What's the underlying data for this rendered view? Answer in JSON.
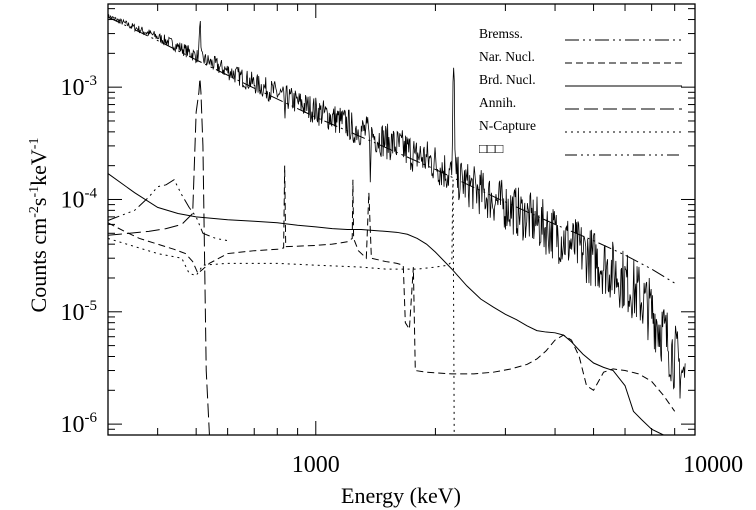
{
  "chart_data": {
    "type": "line",
    "xlabel": "Energy (keV)",
    "ylabel": "Counts cm-2s-1keV-1",
    "ylabel_parts": [
      "Counts cm",
      "-2",
      "s",
      "-1",
      "keV",
      "-1"
    ],
    "x_scale": "log",
    "y_scale": "log",
    "xlim": [
      300,
      9000
    ],
    "ylim": [
      8e-07,
      0.0055
    ],
    "x_ticks": [
      {
        "value": 1000,
        "label": "1000"
      },
      {
        "value": 10000,
        "label": "10000"
      }
    ],
    "y_ticks": [
      {
        "value": 0.001,
        "base": "10",
        "exp": "-3"
      },
      {
        "value": 0.0001,
        "base": "10",
        "exp": "-4"
      },
      {
        "value": 1e-05,
        "base": "10",
        "exp": "-5"
      },
      {
        "value": 1e-06,
        "base": "10",
        "exp": "-6"
      }
    ],
    "legend_position": "top-right",
    "grid": false,
    "series": [
      {
        "name": "Bremss.",
        "dash": "14,4,2,4,2,4",
        "points": [
          [
            300,
            0.0042
          ],
          [
            400,
            0.0026
          ],
          [
            500,
            0.00175
          ],
          [
            700,
            0.00098
          ],
          [
            1000,
            0.00054
          ],
          [
            1500,
            0.00029
          ],
          [
            2000,
            0.000185
          ],
          [
            2500,
            0.000128
          ],
          [
            3000,
            9.5e-05
          ],
          [
            4000,
            6e-05
          ],
          [
            5000,
            4.3e-05
          ],
          [
            6000,
            3.2e-05
          ],
          [
            7000,
            2.4e-05
          ],
          [
            8000,
            1.8e-05
          ]
        ]
      },
      {
        "name": "Nar. Nucl.",
        "dash": "7,4",
        "points": [
          [
            300,
            6.2e-05
          ],
          [
            330,
            5.2e-05
          ],
          [
            360,
            4.5e-05
          ],
          [
            400,
            4e-05
          ],
          [
            440,
            3.6e-05
          ],
          [
            470,
            3.3e-05
          ],
          [
            490,
            2.8e-05
          ],
          [
            505,
            2.2e-05
          ],
          [
            520,
            2.4e-05
          ],
          [
            540,
            2.7e-05
          ],
          [
            600,
            3.3e-05
          ],
          [
            700,
            3.5e-05
          ],
          [
            800,
            3.6e-05
          ],
          [
            830,
            3.7e-05
          ],
          [
            835,
            0.0002
          ],
          [
            840,
            3.8e-05
          ],
          [
            1000,
            3.9e-05
          ],
          [
            1100,
            4e-05
          ],
          [
            1200,
            4.2e-05
          ],
          [
            1235,
            4.5e-05
          ],
          [
            1240,
            0.00015
          ],
          [
            1245,
            4.5e-05
          ],
          [
            1280,
            3.5e-05
          ],
          [
            1340,
            3e-05
          ],
          [
            1360,
            0.000115
          ],
          [
            1380,
            3e-05
          ],
          [
            1500,
            2.8e-05
          ],
          [
            1600,
            2.7e-05
          ],
          [
            1660,
            2.6e-05
          ],
          [
            1680,
            8e-06
          ],
          [
            1720,
            7e-06
          ],
          [
            1760,
            2.5e-05
          ],
          [
            1780,
            3e-06
          ],
          [
            1900,
            2.9e-06
          ],
          [
            2200,
            2.8e-06
          ],
          [
            2500,
            2.8e-06
          ],
          [
            2800,
            2.9e-06
          ],
          [
            3100,
            3.1e-06
          ],
          [
            3400,
            3.4e-06
          ],
          [
            3600,
            3.8e-06
          ],
          [
            3800,
            4.5e-06
          ],
          [
            4000,
            5.6e-06
          ],
          [
            4200,
            6.2e-06
          ],
          [
            4400,
            5.6e-06
          ],
          [
            4600,
            4e-06
          ],
          [
            4800,
            2.2e-06
          ],
          [
            5000,
            2e-06
          ],
          [
            5300,
            2.9e-06
          ],
          [
            5600,
            3.1e-06
          ],
          [
            6000,
            3e-06
          ],
          [
            6500,
            2.8e-06
          ],
          [
            7000,
            2.4e-06
          ],
          [
            7500,
            1.8e-06
          ],
          [
            8000,
            1.3e-06
          ]
        ]
      },
      {
        "name": "Brd. Nucl.",
        "dash": "",
        "points": [
          [
            300,
            0.00017
          ],
          [
            350,
            0.000115
          ],
          [
            400,
            8.5e-05
          ],
          [
            450,
            7.5e-05
          ],
          [
            500,
            7e-05
          ],
          [
            600,
            6.6e-05
          ],
          [
            700,
            6.4e-05
          ],
          [
            800,
            6.2e-05
          ],
          [
            900,
            5.9e-05
          ],
          [
            1000,
            5.7e-05
          ],
          [
            1100,
            5.5e-05
          ],
          [
            1200,
            5.4e-05
          ],
          [
            1300,
            5.4e-05
          ],
          [
            1400,
            5.3e-05
          ],
          [
            1500,
            5.2e-05
          ],
          [
            1600,
            5.1e-05
          ],
          [
            1700,
            4.9e-05
          ],
          [
            1800,
            4.5e-05
          ],
          [
            1900,
            4e-05
          ],
          [
            2000,
            3.4e-05
          ],
          [
            2200,
            2.4e-05
          ],
          [
            2400,
            1.7e-05
          ],
          [
            2600,
            1.3e-05
          ],
          [
            2800,
            1.1e-05
          ],
          [
            3000,
            9.5e-06
          ],
          [
            3200,
            8.5e-06
          ],
          [
            3400,
            7.5e-06
          ],
          [
            3600,
            6.8e-06
          ],
          [
            3800,
            6.6e-06
          ],
          [
            4000,
            6.5e-06
          ],
          [
            4200,
            6.2e-06
          ],
          [
            4400,
            5.4e-06
          ],
          [
            4700,
            4.2e-06
          ],
          [
            5000,
            3.5e-06
          ],
          [
            5300,
            3.2e-06
          ],
          [
            5600,
            3e-06
          ],
          [
            6000,
            2.2e-06
          ],
          [
            6300,
            1.3e-06
          ],
          [
            6600,
            1.1e-06
          ],
          [
            7000,
            9e-07
          ],
          [
            7500,
            7e-07
          ]
        ]
      },
      {
        "name": "Annih.",
        "dash": "14,5",
        "points": [
          [
            300,
            4.8e-05
          ],
          [
            380,
            5.2e-05
          ],
          [
            420,
            5.5e-05
          ],
          [
            460,
            6e-05
          ],
          [
            490,
            7.5e-05
          ],
          [
            500,
            0.0006
          ],
          [
            508,
            0.0009
          ],
          [
            511,
            0.0012
          ],
          [
            514,
            0.0009
          ],
          [
            520,
            0.0003
          ],
          [
            530,
            3e-06
          ],
          [
            540,
            5e-07
          ]
        ]
      },
      {
        "name": "N-Capture",
        "dash": "2,4",
        "points": [
          [
            300,
            4.5e-05
          ],
          [
            400,
            3.3e-05
          ],
          [
            460,
            3e-05
          ],
          [
            480,
            2.2e-05
          ],
          [
            500,
            2.1e-05
          ],
          [
            520,
            2.6e-05
          ],
          [
            600,
            2.7e-05
          ],
          [
            800,
            2.7e-05
          ],
          [
            1000,
            2.6e-05
          ],
          [
            1300,
            2.5e-05
          ],
          [
            1500,
            2.4e-05
          ],
          [
            1800,
            2.4e-05
          ],
          [
            2000,
            2.5e-05
          ],
          [
            2150,
            2.6e-05
          ],
          [
            2200,
            2.8e-05
          ],
          [
            2210,
            0.00011
          ],
          [
            2215,
            0.00015
          ],
          [
            2225,
            5e-06
          ],
          [
            2230,
            5e-07
          ]
        ]
      },
      {
        "name": "□□□",
        "dash": "12,4,2,4,2,4,2,4",
        "points": [
          [
            300,
            6.5e-05
          ],
          [
            350,
            8e-05
          ],
          [
            380,
            0.000105
          ],
          [
            400,
            0.00013
          ],
          [
            420,
            0.000135
          ],
          [
            440,
            0.00015
          ],
          [
            460,
            0.00011
          ],
          [
            480,
            8.5e-05
          ],
          [
            500,
            7e-05
          ],
          [
            520,
            5e-05
          ],
          [
            560,
            4.5e-05
          ],
          [
            600,
            4.3e-05
          ]
        ]
      }
    ],
    "observed_spectrum": {
      "base": [
        [
          300,
          0.0043
        ],
        [
          350,
          0.0034
        ],
        [
          400,
          0.0028
        ],
        [
          450,
          0.0023
        ],
        [
          500,
          0.0019
        ],
        [
          600,
          0.0014
        ],
        [
          700,
          0.00108
        ],
        [
          800,
          0.00088
        ],
        [
          900,
          0.00073
        ],
        [
          1000,
          0.00062
        ],
        [
          1200,
          0.00047
        ],
        [
          1400,
          0.00037
        ],
        [
          1600,
          0.0003
        ],
        [
          1800,
          0.00025
        ],
        [
          2000,
          0.00021
        ],
        [
          2200,
          0.000165
        ],
        [
          2500,
          0.000125
        ],
        [
          2800,
          0.0001
        ],
        [
          3000,
          8.8e-05
        ],
        [
          3500,
          6.6e-05
        ],
        [
          4000,
          5e-05
        ],
        [
          4500,
          3.8e-05
        ],
        [
          5000,
          3e-05
        ],
        [
          5500,
          2.4e-05
        ],
        [
          6000,
          1.9e-05
        ],
        [
          6500,
          1.4e-05
        ],
        [
          7000,
          1e-05
        ],
        [
          7500,
          6.5e-06
        ],
        [
          8000,
          4e-06
        ],
        [
          8500,
          2.5e-06
        ]
      ],
      "lines": [
        {
          "energy": 511,
          "peak": 0.0042
        },
        {
          "energy": 835,
          "peak": 0.00048
        },
        {
          "energy": 1240,
          "peak": 0.00025
        },
        {
          "energy": 1370,
          "peak": 0.00017
        },
        {
          "energy": 1780,
          "peak": 0.00019
        },
        {
          "energy": 2223,
          "peak": 0.0021
        }
      ]
    }
  }
}
